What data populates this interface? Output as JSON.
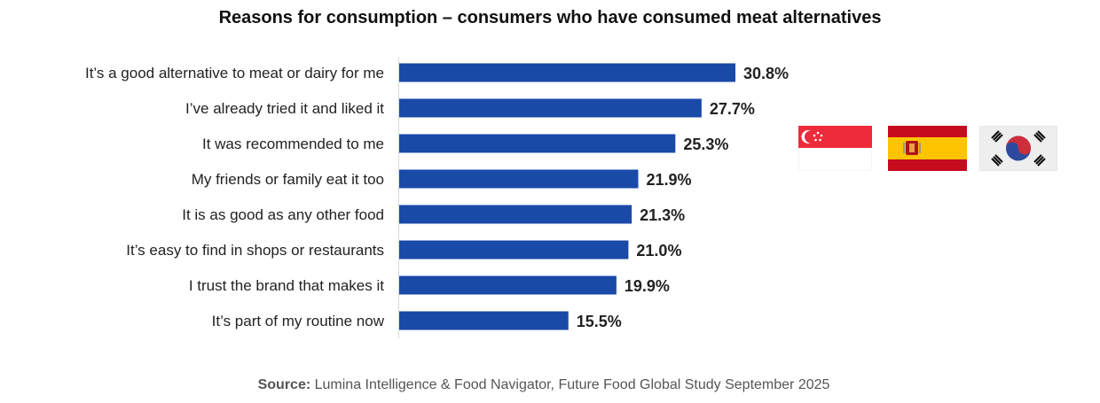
{
  "chart_data": {
    "type": "bar",
    "orientation": "horizontal",
    "title": "Reasons for consumption – consumers who have consumed meat alternatives",
    "categories": [
      "It’s a good alternative to meat or dairy for me",
      "I’ve already tried it and liked it",
      "It was recommended to me",
      "My friends or family eat it too",
      "It is as good as any other food",
      "It’s easy to find in shops or restaurants",
      "I trust the brand that makes it",
      "It’s part of my routine now"
    ],
    "values": [
      30.8,
      27.7,
      25.3,
      21.9,
      21.3,
      21.0,
      19.9,
      15.5
    ],
    "data_labels": [
      "30.8%",
      "27.7%",
      "25.3%",
      "21.9%",
      "21.3%",
      "21.0%",
      "19.9%",
      "15.5%"
    ],
    "unit": "%",
    "xlim": [
      0,
      30.8
    ],
    "grid": false,
    "bar_color": "#1a4aa8"
  },
  "flags": [
    "singapore-flag-icon",
    "spain-flag-icon",
    "south-korea-flag-icon"
  ],
  "source": {
    "label": "Source:",
    "text": " Lumina Intelligence & Food Navigator, Future Food Global Study September 2025"
  }
}
